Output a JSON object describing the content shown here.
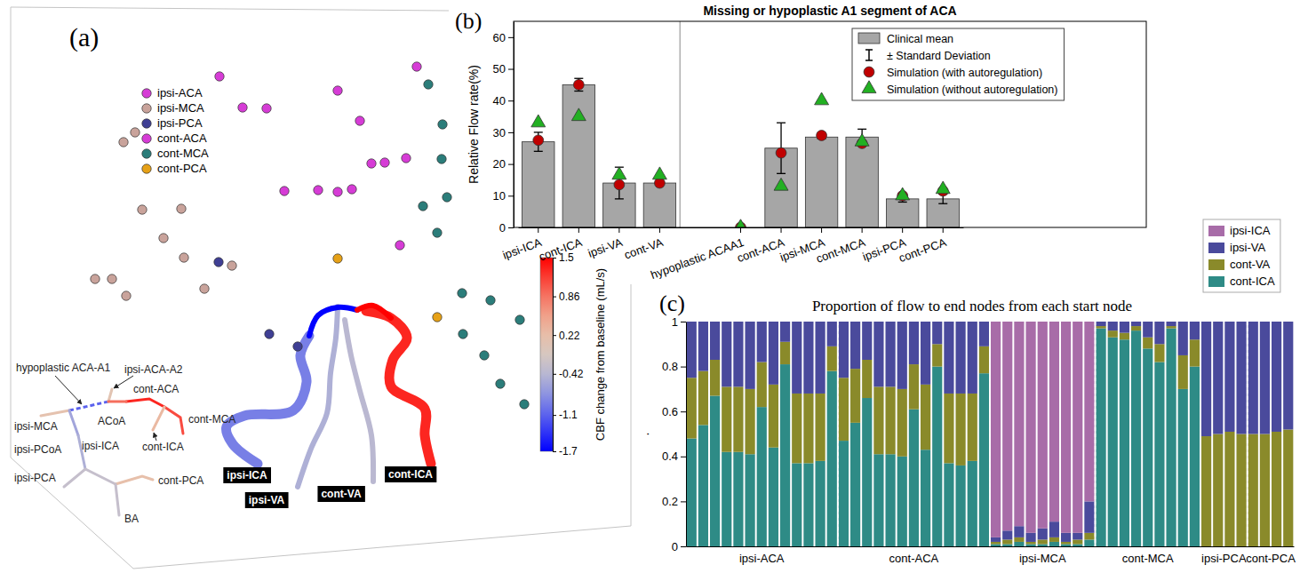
{
  "chart_data": [
    {
      "type": "scatter",
      "panel_label": "(a)",
      "tick_labels": false,
      "xlim": [
        0,
        750
      ],
      "ylim": [
        0,
        645
      ],
      "legend": "top-left",
      "series": [
        {
          "name": "ipsi-ACA",
          "color": "#d63cd6",
          "marker": "circle",
          "x": [
            247,
            273,
            300,
            320,
            358,
            405,
            380
          ],
          "y": [
            559,
            524,
            523,
            430,
            431,
            509,
            543
          ]
        },
        {
          "name": "ipsi-MCA",
          "color": "#c9a39b",
          "marker": "circle",
          "x": [
            139,
            152,
            107,
            126,
            160,
            204,
            184,
            207,
            142,
            230,
            261
          ],
          "y": [
            485,
            496,
            331,
            331,
            409,
            410,
            377,
            355,
            312,
            320,
            346
          ]
        },
        {
          "name": "ipsi-PCA",
          "color": "#3f3f94",
          "marker": "circle",
          "x": [
            246,
            303,
            335
          ],
          "y": [
            350,
            269,
            255
          ]
        },
        {
          "name": "cont-ACA",
          "color": "#d63cd6",
          "marker": "circle",
          "x": [
            380,
            396,
            418,
            433,
            457,
            469,
            450
          ],
          "y": [
            429,
            432,
            461,
            462,
            467,
            570,
            369
          ]
        },
        {
          "name": "cont-MCA",
          "color": "#2b7d7a",
          "marker": "circle",
          "x": [
            482,
            498,
            497,
            476,
            503,
            492,
            520,
            552,
            585,
            563,
            590,
            521,
            545
          ],
          "y": [
            550,
            505,
            466,
            413,
            423,
            383,
            315,
            307,
            285,
            213,
            190,
            269,
            245
          ]
        },
        {
          "name": "cont-PCA",
          "color": "#e6a117",
          "marker": "circle",
          "x": [
            380,
            492
          ],
          "y": [
            354,
            288
          ]
        }
      ],
      "vessels": [
        {
          "name": "ipsi-ICA",
          "value": -0.9,
          "x": [
            290,
            262,
            255,
            275,
            330,
            345,
            338,
            348
          ],
          "y": [
            123,
            145,
            165,
            177,
            183,
            215,
            245,
            267
          ]
        },
        {
          "name": "ipsi-VA",
          "value": -0.5,
          "x": [
            335,
            350,
            368,
            372,
            378,
            380
          ],
          "y": [
            97,
            140,
            180,
            225,
            265,
            300
          ]
        },
        {
          "name": "cont-VA",
          "value": -0.4,
          "x": [
            420,
            418,
            405,
            395,
            388
          ],
          "y": [
            103,
            155,
            205,
            245,
            285
          ]
        },
        {
          "name": "cont-ICA",
          "value": 1.3,
          "x": [
            485,
            478,
            478,
            440,
            442,
            458,
            440,
            412
          ],
          "y": [
            123,
            155,
            185,
            210,
            240,
            265,
            287,
            295
          ]
        },
        {
          "name": null,
          "value": -1.7,
          "x": [
            348,
            358,
            380,
            402
          ],
          "y": [
            267,
            290,
            299,
            296
          ]
        },
        {
          "name": null,
          "value": 1.5,
          "x": [
            402,
            420,
            440
          ],
          "y": [
            296,
            301,
            287
          ]
        }
      ],
      "schematic": [
        {
          "name": "hypoplastic ACA-A1",
          "value": -1.1,
          "line_style": "dashed"
        },
        {
          "name": "ipsi-ACA-A2",
          "value": 0.1
        },
        {
          "name": "cont-ACA",
          "value": 1.3
        },
        {
          "name": "ACoA",
          "value": 0.9
        },
        {
          "name": "cont-MCA",
          "value": 1.1
        },
        {
          "name": "cont-ICA",
          "value": 0.3
        },
        {
          "name": "ipsi-MCA",
          "value": 0.15
        },
        {
          "name": "ipsi-ICA",
          "value": -0.6
        },
        {
          "name": "ipsi-PCoA",
          "value": -0.5
        },
        {
          "name": "ipsi-PCA",
          "value": -0.3
        },
        {
          "name": "cont-PCA",
          "value": 0.2
        },
        {
          "name": "BA",
          "value": -0.3
        }
      ],
      "colorbar": {
        "label": "CBF change from baseline (mL/s)",
        "range": [
          -1.7,
          1.5
        ],
        "ticks": [
          1.5,
          0.86,
          0.22,
          -0.42,
          -1.1,
          -1.7
        ]
      }
    },
    {
      "type": "bar",
      "panel_label": "(b)",
      "title": "Missing or hypoplastic A1 segment of ACA",
      "y_label": "Relative Flow rate(%)",
      "categories": [
        "ipsi-ICA",
        "cont-ICA",
        "ipsi-VA",
        "cont-VA",
        null,
        "hypoplastic ACAA1",
        "cont-ACA",
        "ipsi-MCA",
        "cont-MCA",
        "ipsi-PCA",
        "cont-PCA"
      ],
      "ylim": [
        0,
        65
      ],
      "yticks": [
        0,
        10,
        20,
        30,
        40,
        50,
        60
      ],
      "legend": "top-right",
      "series": [
        {
          "name": "Clinical mean",
          "type": "bar",
          "color": "#a6a6a6",
          "values": [
            27,
            45,
            14,
            14,
            null,
            0,
            25,
            28.5,
            28.5,
            9,
            9
          ]
        },
        {
          "name": "± Standard Deviation",
          "type": "errorbar",
          "color": "#000000",
          "values": [
            3,
            2,
            5,
            0.5,
            null,
            0,
            8,
            0.5,
            2.5,
            1,
            1.5
          ]
        },
        {
          "name": "Simulation (with autoregulation)",
          "type": "scatter",
          "marker": "circle",
          "color": "#c00000",
          "values": [
            27.5,
            45,
            13.5,
            14,
            null,
            0,
            23.5,
            29,
            26.5,
            10,
            11.5
          ]
        },
        {
          "name": "Simulation (without autoregulation)",
          "type": "scatter",
          "marker": "triangle",
          "color": "#22b022",
          "values": [
            33,
            35,
            16.5,
            16.5,
            null,
            0,
            13,
            40,
            27,
            10,
            12
          ]
        }
      ]
    },
    {
      "type": "bar",
      "stacked": true,
      "panel_label": "(c)",
      "title": "Proportion of flow to end nodes from each start node",
      "y_label": ".",
      "categories": [
        "ipsi-ACA",
        "cont-ACA",
        "ipsi-MCA",
        "cont-MCA",
        "ipsi-PCA",
        "cont-PCA"
      ],
      "ylim": [
        0,
        1
      ],
      "yticks": [
        0,
        0.2,
        0.4,
        0.6,
        0.8,
        1
      ],
      "legend": "top-right",
      "series": [
        {
          "name": "ipsi-ICA",
          "color": "#a86ca8",
          "values": [
            [
              0,
              0,
              0,
              0,
              0,
              0,
              0,
              0,
              0,
              0,
              0,
              0,
              0
            ],
            [
              0,
              0,
              0,
              0,
              0,
              0,
              0,
              0,
              0,
              0,
              0,
              0,
              0
            ],
            [
              0.96,
              0.93,
              0.91,
              0.94,
              0.92,
              0.89,
              0.94,
              0.94,
              0.8
            ],
            [
              0,
              0,
              0,
              0,
              0,
              0,
              0,
              0,
              0
            ],
            [
              0,
              0,
              0,
              0
            ],
            [
              0,
              0,
              0,
              0
            ]
          ]
        },
        {
          "name": "ipsi-VA",
          "color": "#4a4a9c",
          "values": [
            [
              0.25,
              0.22,
              0.17,
              0.29,
              0.29,
              0.3,
              0.18,
              0.28,
              0.09,
              0.32,
              0.32,
              0.32,
              0.11
            ],
            [
              0.25,
              0.21,
              0.17,
              0.29,
              0.29,
              0.3,
              0.19,
              0.28,
              0.1,
              0.32,
              0.32,
              0.32,
              0.11
            ],
            [
              0.02,
              0.04,
              0.05,
              0.04,
              0.05,
              0.07,
              0.04,
              0.03,
              0.14
            ],
            [
              0.02,
              0.04,
              0.05,
              0.02,
              0.07,
              0.1,
              0.02,
              0.15,
              0.08
            ],
            [
              0.51,
              0.5,
              0.49,
              0.5
            ],
            [
              0.5,
              0.5,
              0.49,
              0.48
            ]
          ]
        },
        {
          "name": "cont-VA",
          "color": "#8a8a2a",
          "values": [
            [
              0.27,
              0.24,
              0.16,
              0.29,
              0.29,
              0.29,
              0.2,
              0.28,
              0.1,
              0.31,
              0.31,
              0.3,
              0.11
            ],
            [
              0.28,
              0.24,
              0.17,
              0.3,
              0.3,
              0.3,
              0.2,
              0.29,
              0.1,
              0.31,
              0.32,
              0.3,
              0.12
            ],
            [
              0.01,
              0.02,
              0.02,
              0.01,
              0.02,
              0.02,
              0.01,
              0.02,
              0.03
            ],
            [
              0.01,
              0.03,
              0.03,
              0.02,
              0.05,
              0.08,
              0.01,
              0.15,
              0.12
            ],
            [
              0.49,
              0.5,
              0.51,
              0.5
            ],
            [
              0.5,
              0.5,
              0.51,
              0.52
            ]
          ]
        },
        {
          "name": "cont-ICA",
          "color": "#2e8b86",
          "values": [
            [
              0.48,
              0.54,
              0.67,
              0.42,
              0.42,
              0.41,
              0.62,
              0.44,
              0.81,
              0.37,
              0.37,
              0.38,
              0.78
            ],
            [
              0.47,
              0.55,
              0.66,
              0.41,
              0.41,
              0.4,
              0.61,
              0.43,
              0.8,
              0.37,
              0.36,
              0.38,
              0.77
            ],
            [
              0.01,
              0.01,
              0.02,
              0.01,
              0.01,
              0.02,
              0.01,
              0.01,
              0.03
            ],
            [
              0.97,
              0.93,
              0.92,
              0.96,
              0.88,
              0.82,
              0.97,
              0.7,
              0.8
            ],
            [
              0,
              0,
              0,
              0
            ],
            [
              0,
              0,
              0,
              0
            ]
          ]
        }
      ]
    }
  ]
}
